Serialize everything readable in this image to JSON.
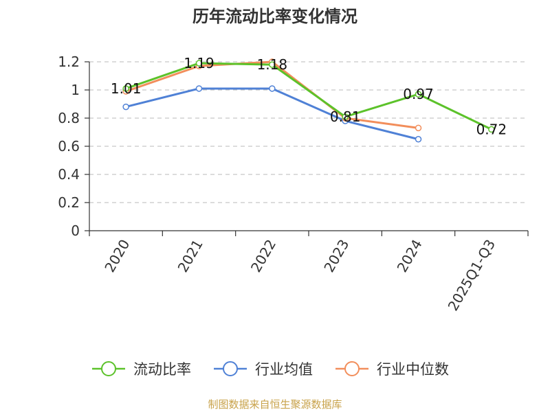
{
  "chart_data": {
    "type": "line",
    "title": "历年流动比率变化情况",
    "categories": [
      "2020",
      "2021",
      "2022",
      "2023",
      "2024",
      "2025Q1-Q3"
    ],
    "yticks": [
      "0",
      "0.2",
      "0.4",
      "0.6",
      "0.8",
      "1",
      "1.2"
    ],
    "ylim": [
      0,
      1.2
    ],
    "grid": true,
    "legend_position": "bottom",
    "series": [
      {
        "name": "流动比率",
        "color": "#5cc22a",
        "values": [
          1.01,
          1.19,
          1.18,
          0.81,
          0.97,
          0.72
        ],
        "labels": [
          "1.01",
          "1.19",
          "1.18",
          "0.81",
          "0.97",
          "0.72"
        ]
      },
      {
        "name": "行业均值",
        "color": "#4f81d6",
        "values": [
          0.88,
          1.01,
          1.01,
          0.78,
          0.65,
          null
        ]
      },
      {
        "name": "行业中位数",
        "color": "#f28e5b",
        "values": [
          0.99,
          1.17,
          1.2,
          0.8,
          0.73,
          null
        ]
      }
    ]
  },
  "footer": {
    "source": "制图数据来自恒生聚源数据库"
  }
}
